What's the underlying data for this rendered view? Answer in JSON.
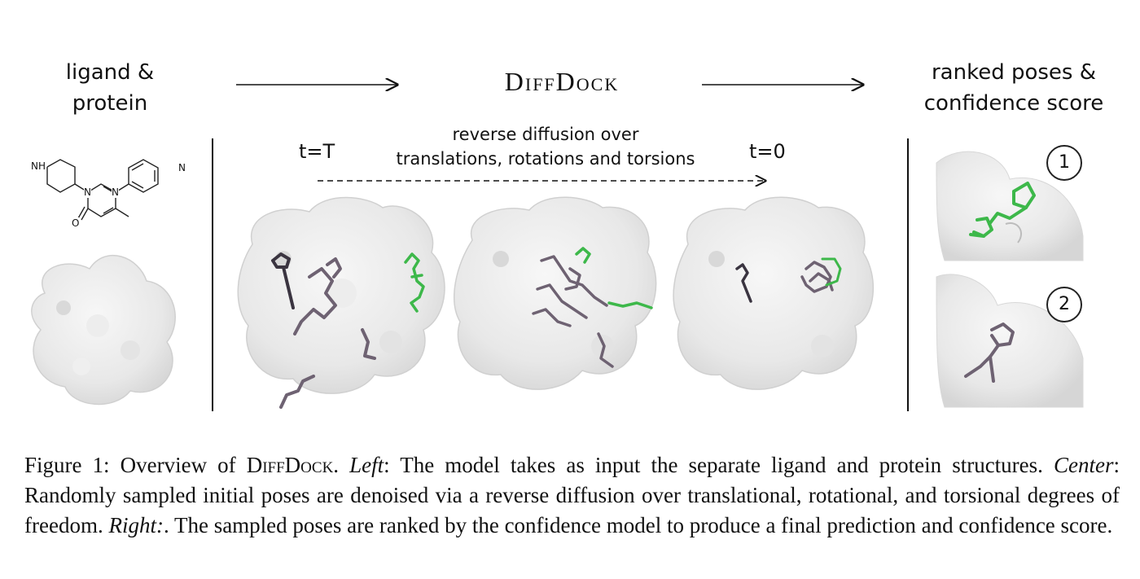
{
  "header": {
    "left_label_line1": "ligand &",
    "left_label_line2": "protein",
    "brand": "DiffDock",
    "right_label_line1": "ranked poses &",
    "right_label_line2": "confidence score"
  },
  "center": {
    "subtitle_line1": "reverse diffusion over",
    "subtitle_line2": "translations, rotations and torsions",
    "t_start": "t=T",
    "t_end": "t=0"
  },
  "molecule": {
    "nh_label": "NH",
    "n_label_1": "N",
    "n_label_2": "N",
    "n_label_3": "N",
    "o_label": "O"
  },
  "ranks": [
    "1",
    "2"
  ],
  "caption": {
    "prefix": "Figure 1: Overview of ",
    "brand": "DiffDock",
    "period": ". ",
    "left_label": "Left",
    "left_text": ": The model takes as input the separate ligand and protein structures. ",
    "center_label": "Center",
    "center_text": ": Randomly sampled initial poses are denoised via a reverse diffusion over translational, rotational, and torsional degrees of freedom. ",
    "right_label": "Right:",
    "right_text": ". The sampled poses are ranked by the confidence model to produce a final prediction and confidence score."
  },
  "colors": {
    "protein_surface": "#ececec",
    "protein_edge": "#d2d2d2",
    "ligand_gray": "#6e6272",
    "ligand_green": "#3db84a",
    "text": "#111111"
  }
}
